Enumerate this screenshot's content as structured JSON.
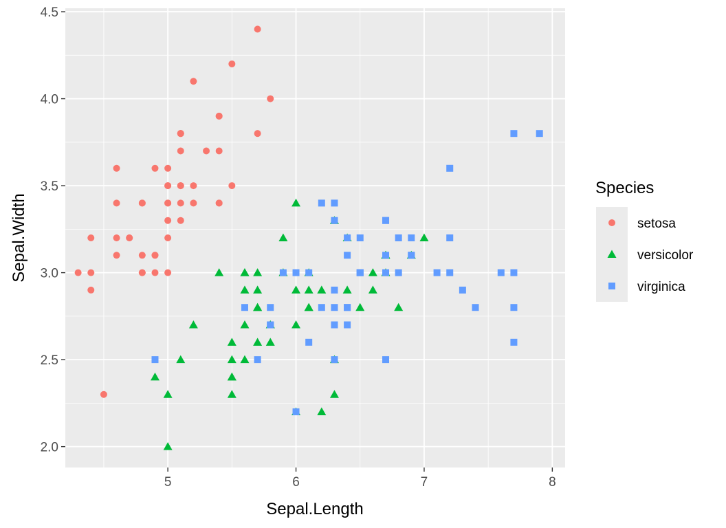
{
  "chart_data": {
    "type": "scatter",
    "title": "",
    "xlabel": "Sepal.Length",
    "ylabel": "Sepal.Width",
    "xlim": [
      4.2,
      8.1
    ],
    "ylim": [
      1.88,
      4.52
    ],
    "x_ticks": [
      5,
      6,
      7,
      8
    ],
    "x_tick_labels": [
      "5",
      "6",
      "7",
      "8"
    ],
    "y_ticks": [
      2.0,
      2.5,
      3.0,
      3.5,
      4.0,
      4.5
    ],
    "y_tick_labels": [
      "2.0",
      "2.5",
      "3.0",
      "3.5",
      "4.0",
      "4.5"
    ],
    "grid": true,
    "legend": {
      "title": "Species",
      "position": "right"
    },
    "series": [
      {
        "name": "setosa",
        "color": "#F8766D",
        "shape": "circle",
        "points": [
          [
            5.1,
            3.5
          ],
          [
            4.9,
            3.0
          ],
          [
            4.7,
            3.2
          ],
          [
            4.6,
            3.1
          ],
          [
            5.0,
            3.6
          ],
          [
            5.4,
            3.9
          ],
          [
            4.6,
            3.4
          ],
          [
            5.0,
            3.4
          ],
          [
            4.4,
            2.9
          ],
          [
            4.9,
            3.1
          ],
          [
            5.4,
            3.7
          ],
          [
            4.8,
            3.4
          ],
          [
            4.8,
            3.0
          ],
          [
            4.3,
            3.0
          ],
          [
            5.8,
            4.0
          ],
          [
            5.7,
            4.4
          ],
          [
            5.4,
            3.9
          ],
          [
            5.1,
            3.5
          ],
          [
            5.7,
            3.8
          ],
          [
            5.1,
            3.8
          ],
          [
            5.4,
            3.4
          ],
          [
            5.1,
            3.7
          ],
          [
            4.6,
            3.6
          ],
          [
            5.1,
            3.3
          ],
          [
            4.8,
            3.4
          ],
          [
            5.0,
            3.0
          ],
          [
            5.0,
            3.4
          ],
          [
            5.2,
            3.5
          ],
          [
            5.2,
            3.4
          ],
          [
            4.7,
            3.2
          ],
          [
            4.8,
            3.1
          ],
          [
            5.4,
            3.4
          ],
          [
            5.2,
            4.1
          ],
          [
            5.5,
            4.2
          ],
          [
            4.9,
            3.1
          ],
          [
            5.0,
            3.2
          ],
          [
            5.5,
            3.5
          ],
          [
            4.9,
            3.6
          ],
          [
            4.4,
            3.0
          ],
          [
            5.1,
            3.4
          ],
          [
            5.0,
            3.5
          ],
          [
            4.5,
            2.3
          ],
          [
            4.4,
            3.2
          ],
          [
            5.0,
            3.5
          ],
          [
            5.1,
            3.8
          ],
          [
            4.8,
            3.0
          ],
          [
            5.1,
            3.8
          ],
          [
            4.6,
            3.2
          ],
          [
            5.3,
            3.7
          ],
          [
            5.0,
            3.3
          ]
        ]
      },
      {
        "name": "versicolor",
        "color": "#00BA38",
        "shape": "triangle",
        "points": [
          [
            7.0,
            3.2
          ],
          [
            6.4,
            3.2
          ],
          [
            6.9,
            3.1
          ],
          [
            5.5,
            2.3
          ],
          [
            6.5,
            2.8
          ],
          [
            5.7,
            2.8
          ],
          [
            6.3,
            3.3
          ],
          [
            4.9,
            2.4
          ],
          [
            6.6,
            2.9
          ],
          [
            5.2,
            2.7
          ],
          [
            5.0,
            2.0
          ],
          [
            5.9,
            3.0
          ],
          [
            6.0,
            2.2
          ],
          [
            6.1,
            2.9
          ],
          [
            5.6,
            2.9
          ],
          [
            6.7,
            3.1
          ],
          [
            5.6,
            3.0
          ],
          [
            5.8,
            2.7
          ],
          [
            6.2,
            2.2
          ],
          [
            5.6,
            2.5
          ],
          [
            5.9,
            3.2
          ],
          [
            6.1,
            2.8
          ],
          [
            6.3,
            2.5
          ],
          [
            6.1,
            2.8
          ],
          [
            6.4,
            2.9
          ],
          [
            6.6,
            3.0
          ],
          [
            6.8,
            2.8
          ],
          [
            6.7,
            3.0
          ],
          [
            6.0,
            2.9
          ],
          [
            5.7,
            2.6
          ],
          [
            5.5,
            2.4
          ],
          [
            5.5,
            2.4
          ],
          [
            5.8,
            2.7
          ],
          [
            6.0,
            2.7
          ],
          [
            5.4,
            3.0
          ],
          [
            6.0,
            3.4
          ],
          [
            6.7,
            3.1
          ],
          [
            6.3,
            2.3
          ],
          [
            5.6,
            3.0
          ],
          [
            5.5,
            2.5
          ],
          [
            5.5,
            2.6
          ],
          [
            6.1,
            3.0
          ],
          [
            5.8,
            2.6
          ],
          [
            5.0,
            2.3
          ],
          [
            5.6,
            2.7
          ],
          [
            5.7,
            3.0
          ],
          [
            5.7,
            2.9
          ],
          [
            6.2,
            2.9
          ],
          [
            5.1,
            2.5
          ],
          [
            5.7,
            2.8
          ]
        ]
      },
      {
        "name": "virginica",
        "color": "#619CFF",
        "shape": "square",
        "points": [
          [
            6.3,
            3.3
          ],
          [
            5.8,
            2.7
          ],
          [
            7.1,
            3.0
          ],
          [
            6.3,
            2.9
          ],
          [
            6.5,
            3.0
          ],
          [
            7.6,
            3.0
          ],
          [
            4.9,
            2.5
          ],
          [
            7.3,
            2.9
          ],
          [
            6.7,
            2.5
          ],
          [
            7.2,
            3.6
          ],
          [
            6.5,
            3.2
          ],
          [
            6.4,
            2.7
          ],
          [
            6.8,
            3.0
          ],
          [
            5.7,
            2.5
          ],
          [
            5.8,
            2.8
          ],
          [
            6.4,
            3.2
          ],
          [
            6.5,
            3.0
          ],
          [
            7.7,
            3.8
          ],
          [
            7.7,
            2.6
          ],
          [
            6.0,
            2.2
          ],
          [
            6.9,
            3.2
          ],
          [
            5.6,
            2.8
          ],
          [
            7.7,
            2.8
          ],
          [
            6.3,
            2.7
          ],
          [
            6.7,
            3.3
          ],
          [
            7.2,
            3.2
          ],
          [
            6.2,
            2.8
          ],
          [
            6.1,
            3.0
          ],
          [
            6.4,
            2.8
          ],
          [
            7.2,
            3.0
          ],
          [
            7.4,
            2.8
          ],
          [
            7.9,
            3.8
          ],
          [
            6.4,
            2.8
          ],
          [
            6.3,
            2.8
          ],
          [
            6.1,
            2.6
          ],
          [
            7.7,
            3.0
          ],
          [
            6.3,
            3.4
          ],
          [
            6.4,
            3.1
          ],
          [
            6.0,
            3.0
          ],
          [
            6.9,
            3.1
          ],
          [
            6.7,
            3.1
          ],
          [
            6.9,
            3.1
          ],
          [
            5.8,
            2.7
          ],
          [
            6.8,
            3.2
          ],
          [
            6.7,
            3.3
          ],
          [
            6.7,
            3.0
          ],
          [
            6.3,
            2.5
          ],
          [
            6.5,
            3.0
          ],
          [
            6.2,
            3.4
          ],
          [
            5.9,
            3.0
          ]
        ]
      }
    ]
  }
}
